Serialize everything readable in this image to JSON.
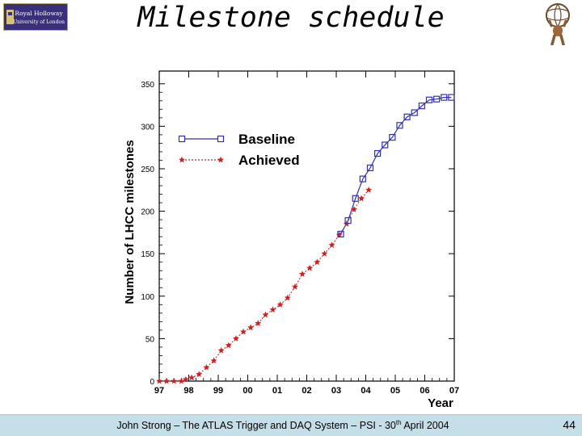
{
  "slide": {
    "title": "Milestone schedule",
    "logo_left_text": [
      "Royal Holloway",
      "University of London"
    ],
    "footer": {
      "before_sup": "John Strong – The ATLAS Trigger and DAQ System – PSI - 30",
      "sup": "th",
      "after_sup": " April 2004"
    },
    "page_number": "44"
  },
  "chart_data": {
    "type": "line",
    "ylabel": "Number of LHCC milestones",
    "xlabel": "Year",
    "xlim": [
      1997.0,
      2007.0
    ],
    "ylim": [
      0,
      365
    ],
    "x_ticks": [
      1997,
      1998,
      1999,
      2000,
      2001,
      2002,
      2003,
      2004,
      2005,
      2006,
      2007
    ],
    "x_tick_labels": [
      "97",
      "98",
      "99",
      "00",
      "01",
      "02",
      "03",
      "04",
      "05",
      "06",
      "07"
    ],
    "y_ticks": [
      0,
      50,
      100,
      150,
      200,
      250,
      300,
      350
    ],
    "y_tick_labels": [
      "0",
      "50",
      "100",
      "150",
      "200",
      "250",
      "300",
      "350"
    ],
    "legend": "upper-left",
    "series": [
      {
        "name": "Baseline",
        "color": "#3030b0",
        "marker": "square",
        "line": "solid",
        "x": [
          2003.15,
          2003.4,
          2003.65,
          2003.9,
          2004.15,
          2004.4,
          2004.65,
          2004.9,
          2005.15,
          2005.4,
          2005.65,
          2005.9,
          2006.15,
          2006.4,
          2006.65,
          2006.9
        ],
        "y": [
          173,
          189,
          215,
          238,
          251,
          268,
          278,
          287,
          301,
          311,
          316,
          324,
          331,
          332,
          334,
          334
        ]
      },
      {
        "name": "Achieved",
        "color": "#d02020",
        "marker": "star",
        "line": "dotted",
        "x": [
          1997.0,
          1997.25,
          1997.5,
          1997.75,
          1997.9,
          1998.1,
          1998.35,
          1998.6,
          1998.85,
          1999.1,
          1999.35,
          1999.6,
          1999.85,
          2000.1,
          2000.35,
          2000.6,
          2000.85,
          2001.1,
          2001.35,
          2001.6,
          2001.85,
          2002.1,
          2002.35,
          2002.6,
          2002.85,
          2003.1,
          2003.35,
          2003.6,
          2003.85,
          2004.1
        ],
        "y": [
          0,
          0,
          0,
          0,
          2,
          4,
          8,
          16,
          24,
          36,
          42,
          50,
          58,
          63,
          68,
          78,
          84,
          90,
          98,
          111,
          126,
          133,
          140,
          150,
          160,
          172,
          185,
          202,
          215,
          225
        ]
      }
    ]
  }
}
